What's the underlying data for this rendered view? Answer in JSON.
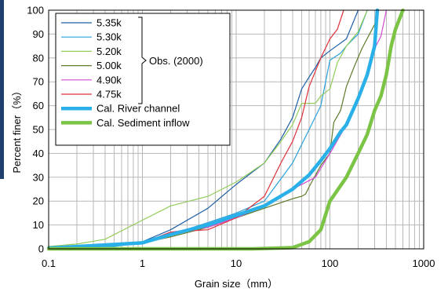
{
  "chart_data": {
    "type": "line",
    "title": "",
    "xlabel": "Grain size（mm）",
    "ylabel": "Percent finer（%）",
    "x_scale": "log",
    "xlim": [
      0.1,
      1000
    ],
    "ylim": [
      0,
      100
    ],
    "x_ticks": [
      "0.1",
      "1",
      "10",
      "100",
      "1000"
    ],
    "y_ticks": [
      "0",
      "10",
      "20",
      "30",
      "40",
      "50",
      "60",
      "70",
      "80",
      "90",
      "100"
    ],
    "grid": true,
    "legend_position": "top-left",
    "group_label": "Obs. (2000)",
    "series": [
      {
        "name": "5.35k",
        "color": "#1f5fa8",
        "width": 1.2,
        "points": [
          [
            0.1,
            0.5
          ],
          [
            0.5,
            1.5
          ],
          [
            1,
            3
          ],
          [
            2,
            8
          ],
          [
            5,
            17
          ],
          [
            10,
            27
          ],
          [
            20,
            36
          ],
          [
            30,
            46
          ],
          [
            40,
            55
          ],
          [
            50,
            67
          ],
          [
            60,
            72
          ],
          [
            70,
            76
          ],
          [
            80,
            80
          ],
          [
            100,
            83
          ],
          [
            150,
            88
          ],
          [
            200,
            100
          ]
        ]
      },
      {
        "name": "5.30k",
        "color": "#2aa1dc",
        "width": 1.2,
        "points": [
          [
            0.1,
            0.5
          ],
          [
            0.5,
            1
          ],
          [
            1,
            2.5
          ],
          [
            2,
            6
          ],
          [
            5,
            11
          ],
          [
            10,
            15
          ],
          [
            20,
            20
          ],
          [
            40,
            36
          ],
          [
            60,
            50
          ],
          [
            80,
            60
          ],
          [
            100,
            79
          ],
          [
            130,
            82
          ],
          [
            150,
            85
          ],
          [
            200,
            90
          ],
          [
            250,
            100
          ]
        ]
      },
      {
        "name": "5.20k",
        "color": "#92cc5a",
        "width": 1.2,
        "points": [
          [
            0.1,
            1
          ],
          [
            0.2,
            2
          ],
          [
            0.4,
            4
          ],
          [
            1,
            12
          ],
          [
            2,
            18
          ],
          [
            5,
            22
          ],
          [
            10,
            28
          ],
          [
            20,
            36
          ],
          [
            30,
            45
          ],
          [
            40,
            52
          ],
          [
            50,
            61
          ],
          [
            70,
            61
          ],
          [
            80,
            64
          ],
          [
            100,
            67
          ],
          [
            120,
            78
          ],
          [
            150,
            85
          ],
          [
            200,
            91
          ],
          [
            250,
            100
          ]
        ]
      },
      {
        "name": "5.00k",
        "color": "#5f7a2a",
        "width": 1.2,
        "points": [
          [
            0.1,
            0.3
          ],
          [
            1,
            2.5
          ],
          [
            2,
            5
          ],
          [
            5,
            9
          ],
          [
            10,
            13
          ],
          [
            20,
            17
          ],
          [
            40,
            21
          ],
          [
            50,
            22
          ],
          [
            55,
            23
          ],
          [
            60,
            26
          ],
          [
            80,
            35
          ],
          [
            100,
            40
          ],
          [
            110,
            53
          ],
          [
            130,
            58
          ],
          [
            150,
            68
          ],
          [
            180,
            76
          ],
          [
            220,
            84
          ],
          [
            300,
            94
          ],
          [
            330,
            100
          ]
        ]
      },
      {
        "name": "4.90k",
        "color": "#d44ad4",
        "width": 1.2,
        "points": [
          [
            0.1,
            0.3
          ],
          [
            1,
            2.5
          ],
          [
            2,
            7
          ],
          [
            5,
            9
          ],
          [
            10,
            13
          ],
          [
            20,
            18
          ],
          [
            40,
            25
          ],
          [
            70,
            30
          ],
          [
            100,
            40
          ],
          [
            150,
            52
          ],
          [
            200,
            62
          ],
          [
            250,
            74
          ],
          [
            300,
            84
          ],
          [
            350,
            89
          ],
          [
            400,
            100
          ]
        ]
      },
      {
        "name": "4.75k",
        "color": "#e0303a",
        "width": 1.2,
        "points": [
          [
            0.1,
            0.3
          ],
          [
            1,
            2.5
          ],
          [
            2,
            7
          ],
          [
            5,
            8
          ],
          [
            10,
            13
          ],
          [
            20,
            22
          ],
          [
            30,
            36
          ],
          [
            40,
            45
          ],
          [
            50,
            55
          ],
          [
            60,
            68
          ],
          [
            80,
            80
          ],
          [
            100,
            88
          ],
          [
            120,
            92
          ],
          [
            140,
            100
          ]
        ]
      },
      {
        "name": "Cal. River channel",
        "color": "#2ab0e8",
        "width": 4.5,
        "points": [
          [
            0.1,
            0.3
          ],
          [
            1,
            2.5
          ],
          [
            2,
            6
          ],
          [
            5,
            10
          ],
          [
            10,
            14
          ],
          [
            20,
            18
          ],
          [
            40,
            25
          ],
          [
            60,
            31
          ],
          [
            80,
            37
          ],
          [
            100,
            42
          ],
          [
            130,
            49
          ],
          [
            150,
            52
          ],
          [
            200,
            63
          ],
          [
            250,
            73
          ],
          [
            300,
            85
          ],
          [
            320,
            100
          ]
        ]
      },
      {
        "name": "Cal. Sediment inflow",
        "color": "#7cc445",
        "width": 4.5,
        "points": [
          [
            0.1,
            0
          ],
          [
            15,
            0
          ],
          [
            40,
            0.5
          ],
          [
            60,
            3
          ],
          [
            80,
            8
          ],
          [
            100,
            20
          ],
          [
            150,
            30
          ],
          [
            200,
            40
          ],
          [
            250,
            48
          ],
          [
            300,
            58
          ],
          [
            350,
            64
          ],
          [
            400,
            73
          ],
          [
            450,
            85
          ],
          [
            500,
            92
          ],
          [
            600,
            100
          ]
        ]
      }
    ]
  }
}
